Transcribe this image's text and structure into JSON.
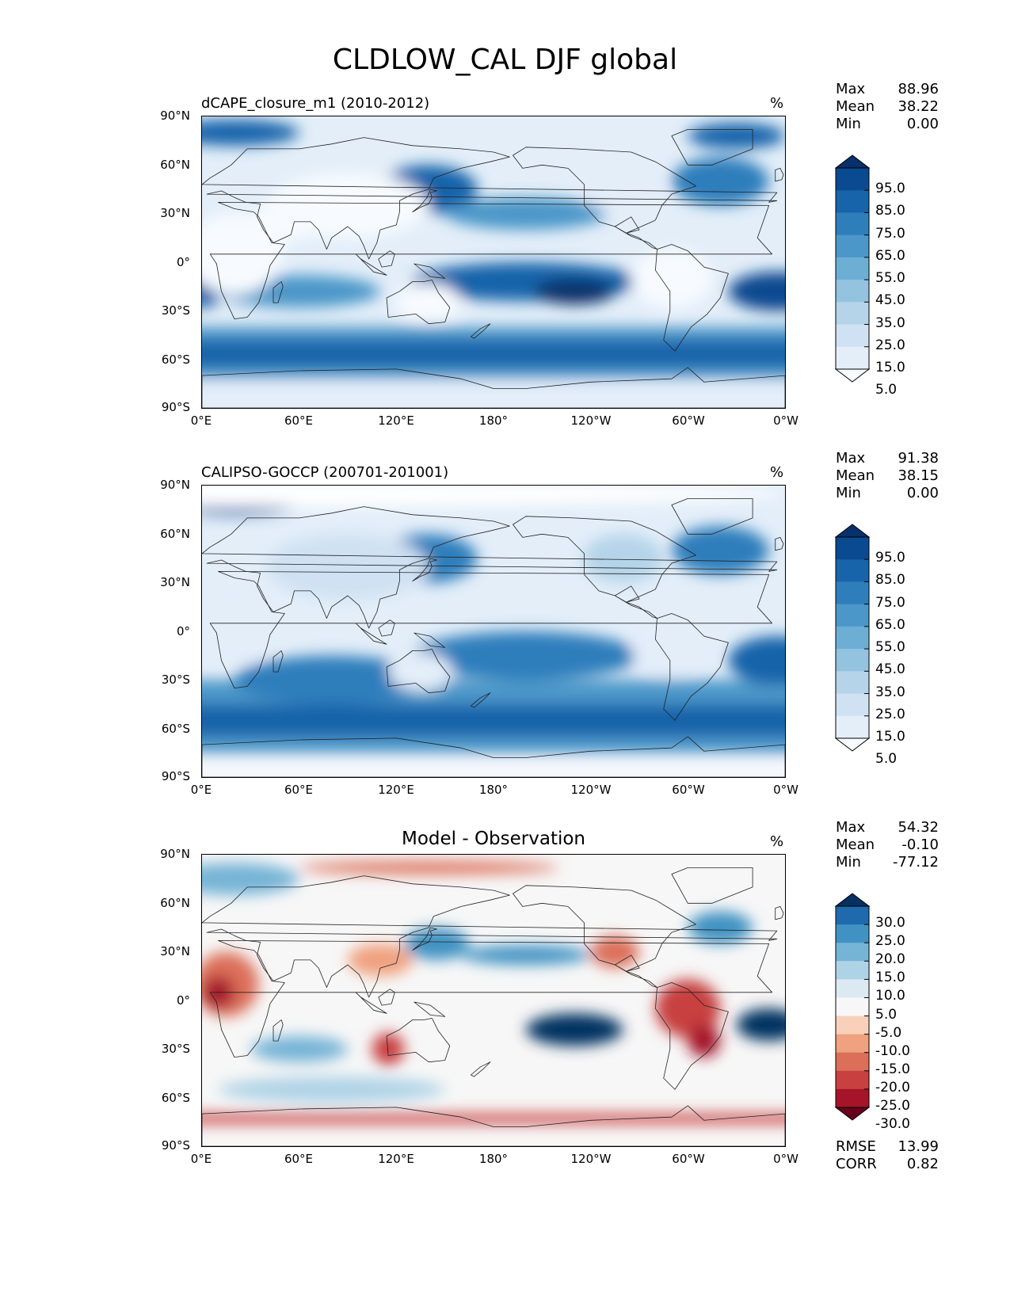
{
  "title": "CLDLOW_CAL DJF global",
  "lat_ticks": [
    "90°N",
    "60°N",
    "30°N",
    "0°",
    "30°S",
    "60°S",
    "90°S"
  ],
  "lon_ticks": [
    "0°E",
    "60°E",
    "120°E",
    "180°",
    "120°W",
    "60°W",
    "0°W"
  ],
  "panels": [
    {
      "title": "dCAPE_closure_m1 (2010-2012)",
      "unit": "%",
      "stats": {
        "max_label": "Max",
        "max": "88.96",
        "mean_label": "Mean",
        "mean": "38.22",
        "min_label": "Min",
        "min": "0.00"
      },
      "colorbar_labels": [
        "95.0",
        "85.0",
        "75.0",
        "65.0",
        "55.0",
        "45.0",
        "35.0",
        "25.0",
        "15.0",
        "5.0"
      ]
    },
    {
      "title": "CALIPSO-GOCCP (200701-201001)",
      "unit": "%",
      "stats": {
        "max_label": "Max",
        "max": "91.38",
        "mean_label": "Mean",
        "mean": "38.15",
        "min_label": "Min",
        "min": "0.00"
      },
      "colorbar_labels": [
        "95.0",
        "85.0",
        "75.0",
        "65.0",
        "55.0",
        "45.0",
        "35.0",
        "25.0",
        "15.0",
        "5.0"
      ]
    },
    {
      "title": "Model - Observation",
      "unit": "%",
      "stats": {
        "max_label": "Max",
        "max": "54.32",
        "mean_label": "Mean",
        "mean": "-0.10",
        "min_label": "Min",
        "min": "-77.12"
      },
      "colorbar_labels": [
        "30.0",
        "25.0",
        "20.0",
        "15.0",
        "10.0",
        "5.0",
        "-5.0",
        "-10.0",
        "-15.0",
        "-20.0",
        "-25.0",
        "-30.0"
      ],
      "rmse_label": "RMSE",
      "rmse": "13.99",
      "corr_label": "CORR",
      "corr": "0.82"
    }
  ],
  "colors": {
    "blues": [
      "#f7fbff",
      "#e3eef9",
      "#cfe1f2",
      "#b5d4e9",
      "#93c3df",
      "#6daed5",
      "#4b97c9",
      "#2f7ebc",
      "#1864aa",
      "#0a4a90",
      "#08306b"
    ],
    "diff": [
      "#67001f",
      "#a51429",
      "#c8403f",
      "#dc6f5a",
      "#f0a17f",
      "#f9d0b9",
      "#f7f7f7",
      "#dbeaf2",
      "#afd3e6",
      "#76b4d6",
      "#4092c2",
      "#1f6aad",
      "#053061"
    ]
  }
}
